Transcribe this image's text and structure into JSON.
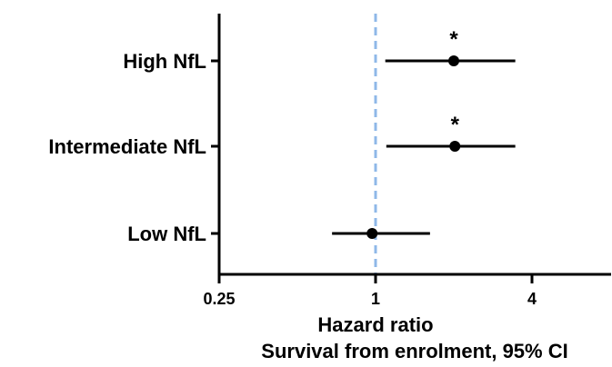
{
  "chart_data": {
    "type": "forest",
    "categories": [
      "High NfL",
      "Intermediate NfL",
      "Low NfL"
    ],
    "series": [
      {
        "points": [
          {
            "category": "High NfL",
            "hr": 2.0,
            "ci_low": 1.09,
            "ci_high": 3.45,
            "significant": true
          },
          {
            "category": "Intermediate NfL",
            "hr": 2.02,
            "ci_low": 1.1,
            "ci_high": 3.45,
            "significant": true
          },
          {
            "category": "Low NfL",
            "hr": 0.97,
            "ci_low": 0.68,
            "ci_high": 1.62,
            "significant": false
          }
        ]
      }
    ],
    "x_scale": "log2",
    "xlim": [
      0.25,
      5.5
    ],
    "x_ticks": [
      0.25,
      1,
      4
    ],
    "x_tick_labels": [
      "0.25",
      "1",
      "4"
    ],
    "reference_line": {
      "value": 1,
      "style": "dashed",
      "color": "#8fb8e8"
    },
    "significance_marker": "*",
    "xlabel_line1": "Hazard ratio",
    "xlabel_line2": "Survival from enrolment, 95% CI",
    "grid": false,
    "legend": "none"
  }
}
